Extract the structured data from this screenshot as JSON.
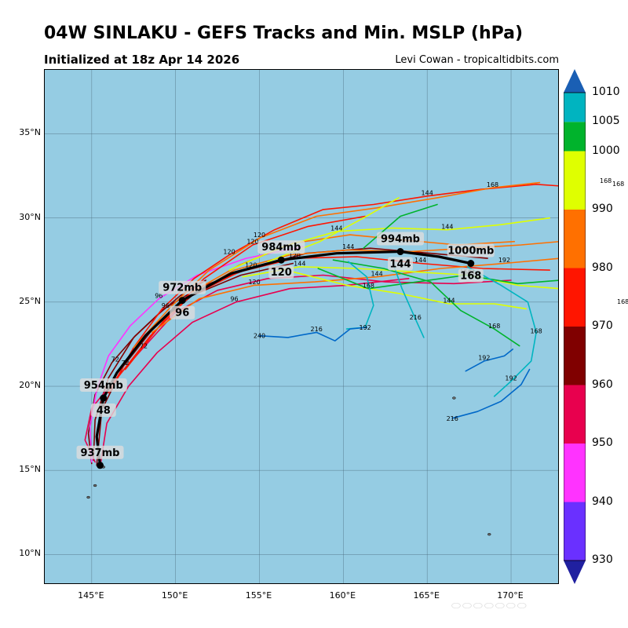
{
  "header": {
    "title": "04W SINLAKU - GEFS Tracks and Min. MSLP (hPa)",
    "subtitle": "Initialized at 18z Apr 14 2026",
    "credit": "Levi Cowan - tropicaltidbits.com"
  },
  "map": {
    "lon_range": [
      142.2,
      172.9
    ],
    "lat_range": [
      8.2,
      38.8
    ],
    "lat_ticks": [
      {
        "value": 10,
        "label": "10°N"
      },
      {
        "value": 15,
        "label": "15°N"
      },
      {
        "value": 20,
        "label": "20°N"
      },
      {
        "value": 25,
        "label": "25°N"
      },
      {
        "value": 30,
        "label": "30°N"
      },
      {
        "value": 35,
        "label": "35°N"
      }
    ],
    "lon_ticks": [
      {
        "value": 145,
        "label": "145°E"
      },
      {
        "value": 150,
        "label": "150°E"
      },
      {
        "value": 155,
        "label": "155°E"
      },
      {
        "value": 160,
        "label": "160°E"
      },
      {
        "value": 165,
        "label": "165°E"
      },
      {
        "value": 170,
        "label": "170°E"
      }
    ],
    "ocean_color": "#95cce3",
    "grid_color": "#4f6f80",
    "islands": [
      {
        "lon": 145.7,
        "lat": 15.2
      },
      {
        "lon": 144.8,
        "lat": 13.4
      },
      {
        "lon": 145.2,
        "lat": 14.1
      },
      {
        "lon": 166.6,
        "lat": 19.3
      },
      {
        "lon": 168.7,
        "lat": 11.2
      }
    ]
  },
  "mean_track": {
    "points": [
      {
        "lon": 145.5,
        "lat": 15.3
      },
      {
        "lon": 145.3,
        "lat": 17.0
      },
      {
        "lon": 145.7,
        "lat": 19.3
      },
      {
        "lon": 146.5,
        "lat": 20.8
      },
      {
        "lon": 148.2,
        "lat": 23.0
      },
      {
        "lon": 150.4,
        "lat": 25.1
      },
      {
        "lon": 153.3,
        "lat": 26.7
      },
      {
        "lon": 156.3,
        "lat": 27.5
      },
      {
        "lon": 159.6,
        "lat": 27.9
      },
      {
        "lon": 163.4,
        "lat": 28.0
      },
      {
        "lon": 165.7,
        "lat": 27.7
      },
      {
        "lon": 167.6,
        "lat": 27.3
      }
    ],
    "markers": [
      {
        "lon": 145.5,
        "lat": 15.3,
        "mslp": "937mb",
        "hour": ""
      },
      {
        "lon": 145.7,
        "lat": 19.3,
        "mslp": "954mb",
        "hour": "48"
      },
      {
        "lon": 150.4,
        "lat": 25.1,
        "mslp": "972mb",
        "hour": "96"
      },
      {
        "lon": 156.3,
        "lat": 27.5,
        "mslp": "984mb",
        "hour": "120"
      },
      {
        "lon": 163.4,
        "lat": 28.0,
        "mslp": "994mb",
        "hour": "144"
      },
      {
        "lon": 167.6,
        "lat": 27.3,
        "mslp": "1000mb",
        "hour": "168"
      }
    ]
  },
  "member_tracks": [
    {
      "color": "#800000",
      "points": [
        [
          145.0,
          15.4
        ],
        [
          144.8,
          17.2
        ],
        [
          145.2,
          19.5
        ],
        [
          146.2,
          21.4
        ],
        [
          147.6,
          23.0
        ],
        [
          149.3,
          24.6
        ],
        [
          151.5,
          25.9
        ],
        [
          154.4,
          27.0
        ],
        [
          157.8,
          27.9
        ],
        [
          161.6,
          28.2
        ],
        [
          165.2,
          27.9
        ],
        [
          168.6,
          27.6
        ]
      ],
      "labels": [
        {
          "lon": 146.4,
          "lat": 21.6,
          "text": "72"
        },
        {
          "lon": 149.4,
          "lat": 24.8,
          "text": "96"
        },
        {
          "lon": 154.5,
          "lat": 27.2,
          "text": "120"
        }
      ]
    },
    {
      "color": "#800000",
      "points": [
        [
          145.3,
          15.3
        ],
        [
          145.6,
          18.6
        ],
        [
          146.9,
          21.2
        ],
        [
          148.8,
          23.6
        ],
        [
          151.0,
          25.4
        ],
        [
          153.9,
          26.6
        ],
        [
          157.0,
          27.3
        ]
      ],
      "labels": [
        {
          "lon": 147.0,
          "lat": 21.4,
          "text": "72"
        }
      ]
    },
    {
      "color": "#800000",
      "points": [
        [
          145.1,
          15.6
        ],
        [
          145.2,
          18.0
        ],
        [
          146.0,
          20.5
        ],
        [
          147.5,
          22.9
        ],
        [
          149.0,
          24.3
        ],
        [
          150.3,
          25.4
        ],
        [
          151.8,
          26.3
        ]
      ],
      "labels": []
    },
    {
      "color": "#e8004e",
      "points": [
        [
          145.2,
          15.5
        ],
        [
          144.6,
          16.8
        ],
        [
          145.0,
          18.7
        ],
        [
          146.4,
          20.4
        ],
        [
          148.0,
          22.2
        ],
        [
          150.0,
          24.4
        ],
        [
          152.5,
          25.7
        ],
        [
          155.5,
          26.4
        ],
        [
          158.8,
          26.6
        ],
        [
          162.5,
          26.2
        ],
        [
          166.6,
          26.1
        ],
        [
          170.0,
          26.3
        ]
      ],
      "labels": [
        {
          "lon": 148.1,
          "lat": 22.4,
          "text": "72"
        },
        {
          "lon": 150.0,
          "lat": 24.6,
          "text": "96"
        }
      ]
    },
    {
      "color": "#e8004e",
      "points": [
        [
          145.5,
          15.2
        ],
        [
          145.9,
          17.8
        ],
        [
          147.2,
          20.0
        ],
        [
          148.9,
          22.0
        ],
        [
          151.0,
          23.8
        ],
        [
          153.6,
          25.0
        ],
        [
          156.8,
          25.8
        ],
        [
          160.2,
          26.0
        ],
        [
          163.9,
          26.4
        ]
      ],
      "labels": [
        {
          "lon": 153.5,
          "lat": 25.2,
          "text": "96"
        }
      ]
    },
    {
      "color": "#ff33ff",
      "points": [
        [
          145.0,
          15.5
        ],
        [
          144.9,
          17.6
        ],
        [
          145.3,
          19.8
        ],
        [
          146.0,
          21.8
        ],
        [
          147.3,
          23.6
        ],
        [
          149.0,
          25.2
        ],
        [
          151.3,
          26.6
        ],
        [
          154.2,
          27.6
        ],
        [
          157.6,
          28.3
        ]
      ],
      "labels": [
        {
          "lon": 149.0,
          "lat": 25.4,
          "text": "96"
        }
      ]
    },
    {
      "color": "#ff1500",
      "points": [
        [
          146.0,
          19.6
        ],
        [
          147.5,
          22.3
        ],
        [
          149.2,
          24.6
        ],
        [
          151.1,
          26.4
        ],
        [
          153.2,
          27.8
        ],
        [
          155.9,
          29.3
        ],
        [
          158.8,
          30.5
        ],
        [
          161.8,
          30.8
        ],
        [
          165.0,
          31.3
        ],
        [
          168.2,
          31.7
        ],
        [
          171.5,
          32.0
        ],
        [
          172.9,
          31.9
        ]
      ],
      "labels": [
        {
          "lon": 153.2,
          "lat": 28.0,
          "text": "120"
        },
        {
          "lon": 165.0,
          "lat": 31.5,
          "text": "144"
        }
      ]
    },
    {
      "color": "#ff1500",
      "points": [
        [
          146.3,
          20.2
        ],
        [
          148.5,
          23.0
        ],
        [
          150.8,
          25.3
        ],
        [
          153.8,
          26.8
        ],
        [
          157.1,
          27.6
        ],
        [
          160.8,
          27.7
        ],
        [
          164.6,
          27.3
        ],
        [
          168.3,
          27.0
        ],
        [
          172.3,
          26.9
        ]
      ],
      "labels": [
        {
          "lon": 157.1,
          "lat": 27.8,
          "text": "120"
        },
        {
          "lon": 164.6,
          "lat": 27.5,
          "text": "144"
        }
      ]
    },
    {
      "color": "#ff1500",
      "points": [
        [
          147.0,
          21.0
        ],
        [
          149.3,
          23.9
        ],
        [
          151.7,
          26.4
        ],
        [
          154.6,
          28.4
        ],
        [
          157.9,
          29.5
        ],
        [
          161.3,
          30.1
        ]
      ],
      "labels": [
        {
          "lon": 154.6,
          "lat": 28.6,
          "text": "120"
        }
      ]
    },
    {
      "color": "#ff7000",
      "points": [
        [
          147.5,
          22.3
        ],
        [
          149.8,
          24.8
        ],
        [
          152.0,
          26.9
        ],
        [
          155.0,
          28.8
        ],
        [
          158.4,
          30.1
        ],
        [
          162.0,
          30.6
        ],
        [
          165.6,
          31.2
        ],
        [
          168.9,
          31.8
        ],
        [
          171.7,
          32.1
        ]
      ],
      "labels": [
        {
          "lon": 155.0,
          "lat": 29.0,
          "text": "120"
        },
        {
          "lon": 168.9,
          "lat": 32.0,
          "text": "168"
        }
      ]
    },
    {
      "color": "#ff7000",
      "points": [
        [
          148.0,
          22.8
        ],
        [
          150.6,
          25.2
        ],
        [
          153.5,
          26.9
        ],
        [
          156.8,
          27.8
        ],
        [
          160.3,
          28.1
        ],
        [
          164.0,
          28.0
        ],
        [
          167.4,
          28.2
        ],
        [
          170.6,
          28.4
        ],
        [
          172.9,
          28.6
        ]
      ],
      "labels": [
        {
          "lon": 160.3,
          "lat": 28.3,
          "text": "144"
        }
      ]
    },
    {
      "color": "#ff7000",
      "points": [
        [
          148.6,
          23.2
        ],
        [
          151.4,
          25.2
        ],
        [
          154.7,
          26.0
        ],
        [
          158.3,
          26.2
        ],
        [
          162.0,
          26.5
        ],
        [
          165.8,
          27.0
        ],
        [
          169.6,
          27.3
        ],
        [
          172.9,
          27.6
        ]
      ],
      "labels": [
        {
          "lon": 154.7,
          "lat": 26.2,
          "text": "120"
        },
        {
          "lon": 162.0,
          "lat": 26.7,
          "text": "144"
        },
        {
          "lon": 169.6,
          "lat": 27.5,
          "text": "192"
        }
      ]
    },
    {
      "color": "#ff7000",
      "points": [
        [
          151.0,
          25.6
        ],
        [
          153.8,
          27.2
        ],
        [
          157.0,
          28.5
        ],
        [
          160.4,
          29.0
        ],
        [
          163.5,
          28.7
        ],
        [
          166.8,
          28.4
        ],
        [
          170.2,
          28.6
        ]
      ],
      "labels": []
    },
    {
      "color": "#dfff00",
      "points": [
        [
          153.2,
          26.9
        ],
        [
          156.4,
          28.3
        ],
        [
          159.6,
          29.2
        ],
        [
          162.9,
          29.4
        ],
        [
          166.2,
          29.3
        ],
        [
          169.4,
          29.6
        ],
        [
          172.3,
          30.0
        ]
      ],
      "labels": [
        {
          "lon": 159.6,
          "lat": 29.4,
          "text": "144"
        },
        {
          "lon": 166.2,
          "lat": 29.5,
          "text": "144"
        }
      ]
    },
    {
      "color": "#dfff00",
      "points": [
        [
          154.0,
          26.5
        ],
        [
          157.4,
          27.1
        ],
        [
          160.8,
          27.0
        ],
        [
          164.2,
          26.8
        ],
        [
          167.5,
          26.6
        ],
        [
          170.4,
          26.0
        ],
        [
          172.9,
          25.8
        ]
      ],
      "labels": [
        {
          "lon": 157.4,
          "lat": 27.3,
          "text": "144"
        },
        {
          "lon": 167.5,
          "lat": 26.8,
          "text": "144"
        }
      ]
    },
    {
      "color": "#dfff00",
      "points": [
        [
          155.5,
          27.4
        ],
        [
          158.6,
          28.6
        ],
        [
          161.2,
          30.0
        ],
        [
          163.3,
          31.2
        ]
      ],
      "labels": []
    },
    {
      "color": "#dfff00",
      "points": [
        [
          157.0,
          26.8
        ],
        [
          160.2,
          26.0
        ],
        [
          163.4,
          25.5
        ],
        [
          166.3,
          24.9
        ],
        [
          169.0,
          24.9
        ],
        [
          170.9,
          24.6
        ]
      ],
      "labels": [
        {
          "lon": 166.3,
          "lat": 25.1,
          "text": "144"
        }
      ]
    },
    {
      "color": "#00b32c",
      "points": [
        [
          158.5,
          27.0
        ],
        [
          161.5,
          25.8
        ],
        [
          164.4,
          26.2
        ],
        [
          167.3,
          26.6
        ],
        [
          170.4,
          26.1
        ],
        [
          172.9,
          26.3
        ]
      ],
      "labels": [
        {
          "lon": 161.5,
          "lat": 26.0,
          "text": "168"
        },
        {
          "lon": 167.3,
          "lat": 26.8,
          "text": "168"
        }
      ]
    },
    {
      "color": "#00b32c",
      "points": [
        [
          159.4,
          27.5
        ],
        [
          162.4,
          27.0
        ],
        [
          165.2,
          26.2
        ],
        [
          167.0,
          24.5
        ],
        [
          169.0,
          23.4
        ],
        [
          170.5,
          22.4
        ]
      ],
      "labels": [
        {
          "lon": 169.0,
          "lat": 23.6,
          "text": "168"
        }
      ]
    },
    {
      "color": "#00b32c",
      "points": [
        [
          161.2,
          28.2
        ],
        [
          163.4,
          30.1
        ],
        [
          165.6,
          30.8
        ]
      ],
      "labels": []
    },
    {
      "color": "#00b4c0",
      "points": [
        [
          160.3,
          27.4
        ],
        [
          161.4,
          26.5
        ],
        [
          161.8,
          24.8
        ],
        [
          161.3,
          23.5
        ],
        [
          160.2,
          23.4
        ]
      ],
      "labels": [
        {
          "lon": 161.3,
          "lat": 23.5,
          "text": "192"
        }
      ]
    },
    {
      "color": "#00b4c0",
      "points": [
        [
          163.0,
          27.2
        ],
        [
          163.5,
          25.8
        ],
        [
          164.3,
          24.0
        ],
        [
          164.8,
          22.9
        ]
      ],
      "labels": [
        {
          "lon": 164.3,
          "lat": 24.1,
          "text": "216"
        }
      ]
    },
    {
      "color": "#00b4c0",
      "points": [
        [
          167.4,
          27.1
        ],
        [
          169.4,
          26.0
        ],
        [
          171.0,
          25.0
        ],
        [
          171.5,
          23.2
        ],
        [
          171.2,
          21.5
        ],
        [
          170.0,
          20.3
        ],
        [
          169.0,
          19.4
        ]
      ],
      "labels": [
        {
          "lon": 171.5,
          "lat": 23.3,
          "text": "168"
        },
        {
          "lon": 170.0,
          "lat": 20.5,
          "text": "192"
        }
      ]
    },
    {
      "color": "#0068c8",
      "points": [
        [
          155.0,
          23.0
        ],
        [
          156.7,
          22.9
        ],
        [
          158.4,
          23.2
        ],
        [
          159.5,
          22.7
        ],
        [
          160.4,
          23.4
        ],
        [
          161.4,
          23.5
        ]
      ],
      "labels": [
        {
          "lon": 155.0,
          "lat": 23.0,
          "text": "240"
        },
        {
          "lon": 158.4,
          "lat": 23.4,
          "text": "216"
        }
      ]
    },
    {
      "color": "#0068c8",
      "points": [
        [
          166.5,
          18.1
        ],
        [
          168.0,
          18.5
        ],
        [
          169.4,
          19.1
        ],
        [
          170.6,
          20.1
        ],
        [
          171.1,
          21.0
        ]
      ],
      "labels": [
        {
          "lon": 166.5,
          "lat": 18.1,
          "text": "216"
        }
      ]
    },
    {
      "color": "#0068c8",
      "points": [
        [
          167.3,
          20.9
        ],
        [
          168.4,
          21.5
        ],
        [
          169.6,
          21.8
        ],
        [
          170.1,
          22.2
        ]
      ],
      "labels": [
        {
          "lon": 168.4,
          "lat": 21.7,
          "text": "192"
        }
      ]
    }
  ],
  "offmap_labels": [
    {
      "text": "168",
      "top": 226,
      "left": 764
    },
    {
      "text": "168",
      "top": 230,
      "left": 780
    },
    {
      "text": "168",
      "top": 380,
      "left": 786
    }
  ],
  "colorbar": {
    "min": 930,
    "max": 1010,
    "segments": [
      {
        "from": 930,
        "to": 940,
        "color": "#6a30ff"
      },
      {
        "from": 940,
        "to": 950,
        "color": "#ff33ff"
      },
      {
        "from": 950,
        "to": 960,
        "color": "#e8004e"
      },
      {
        "from": 960,
        "to": 970,
        "color": "#800000"
      },
      {
        "from": 970,
        "to": 980,
        "color": "#ff1500"
      },
      {
        "from": 980,
        "to": 990,
        "color": "#ff7000"
      },
      {
        "from": 990,
        "to": 1000,
        "color": "#dfff00"
      },
      {
        "from": 1000,
        "to": 1005,
        "color": "#00b32c"
      },
      {
        "from": 1005,
        "to": 1010,
        "color": "#00b4c0"
      }
    ],
    "under_color": "#2020a0",
    "over_color": "#1a5fb4",
    "labels": [
      "930",
      "940",
      "950",
      "960",
      "970",
      "980",
      "990",
      "1000",
      "1005",
      "1010"
    ]
  }
}
